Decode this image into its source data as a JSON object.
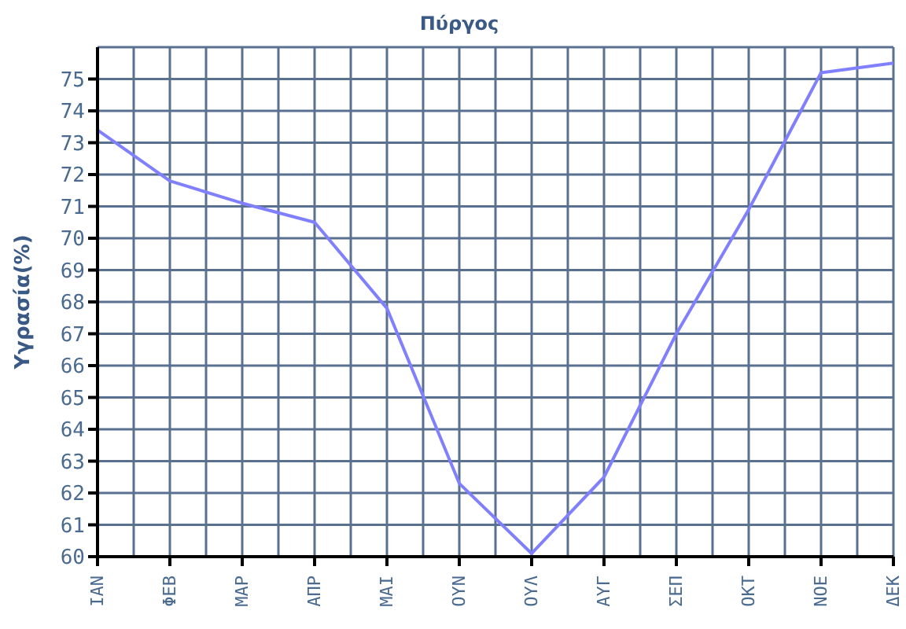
{
  "chart_data": {
    "type": "line",
    "title": "Πύργος",
    "ylabel": "Υγρασία(%)",
    "categories": [
      "ΙΑΝ",
      "ΦΕΒ",
      "ΜΑΡ",
      "ΑΠΡ",
      "ΜΑΙ",
      "ΟΥΝ",
      "ΟΥΛ",
      "ΑΥΓ",
      "ΣΕΠ",
      "ΟΚΤ",
      "ΝΟΕ",
      "ΔΕΚ"
    ],
    "series": [
      {
        "color": "#8080ff",
        "values": [
          73.4,
          71.8,
          71.1,
          70.5,
          67.8,
          62.3,
          60.1,
          62.5,
          67.0,
          70.9,
          75.2,
          75.5
        ]
      }
    ],
    "ylim": [
      60,
      76
    ],
    "yticks": [
      60,
      61,
      62,
      63,
      64,
      65,
      66,
      67,
      68,
      69,
      70,
      71,
      72,
      73,
      74,
      75
    ],
    "grid": true,
    "marker": "none",
    "line_style": "solid"
  }
}
